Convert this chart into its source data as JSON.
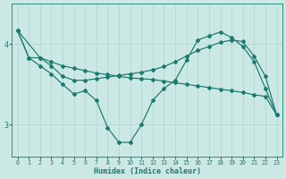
{
  "bg_color": "#cce8e5",
  "line_color": "#1a7a6e",
  "grid_color": "#aed4d0",
  "xlabel": "Humidex (Indice chaleur)",
  "x_ticks": [
    0,
    1,
    2,
    3,
    4,
    5,
    6,
    7,
    8,
    9,
    10,
    11,
    12,
    13,
    14,
    15,
    16,
    17,
    18,
    19,
    20,
    21,
    22,
    23
  ],
  "y_ticks": [
    3,
    4
  ],
  "ylim": [
    2.6,
    4.5
  ],
  "xlim": [
    -0.5,
    23.5
  ],
  "line1_x": [
    0,
    1,
    2,
    3,
    4,
    5,
    6,
    7,
    8,
    9,
    10,
    11,
    12,
    13,
    14,
    15,
    16,
    17,
    18,
    19,
    20,
    21,
    22,
    23
  ],
  "line1_y": [
    4.17,
    3.83,
    3.83,
    3.78,
    3.73,
    3.7,
    3.67,
    3.64,
    3.62,
    3.6,
    3.58,
    3.57,
    3.56,
    3.54,
    3.52,
    3.5,
    3.48,
    3.46,
    3.44,
    3.42,
    3.4,
    3.37,
    3.35,
    3.12
  ],
  "line2_x": [
    0,
    2,
    3,
    4,
    5,
    6,
    7,
    8,
    9,
    10,
    11,
    12,
    13,
    14,
    15,
    16,
    17,
    18,
    19,
    20,
    21,
    22,
    23
  ],
  "line2_y": [
    4.17,
    3.83,
    3.73,
    3.6,
    3.55,
    3.55,
    3.57,
    3.59,
    3.61,
    3.63,
    3.65,
    3.68,
    3.72,
    3.78,
    3.85,
    3.92,
    3.97,
    4.02,
    4.05,
    4.03,
    3.85,
    3.6,
    3.12
  ],
  "line3_x": [
    0,
    1,
    2,
    3,
    4,
    5,
    6,
    7,
    8,
    9,
    10,
    11,
    12,
    13,
    14,
    15,
    16,
    17,
    18,
    19,
    20,
    21,
    22,
    23
  ],
  "line3_y": [
    4.17,
    3.83,
    3.73,
    3.63,
    3.5,
    3.38,
    3.42,
    3.3,
    2.96,
    2.78,
    2.78,
    3.0,
    3.3,
    3.45,
    3.55,
    3.8,
    4.05,
    4.1,
    4.15,
    4.08,
    3.97,
    3.78,
    3.45,
    3.12
  ]
}
